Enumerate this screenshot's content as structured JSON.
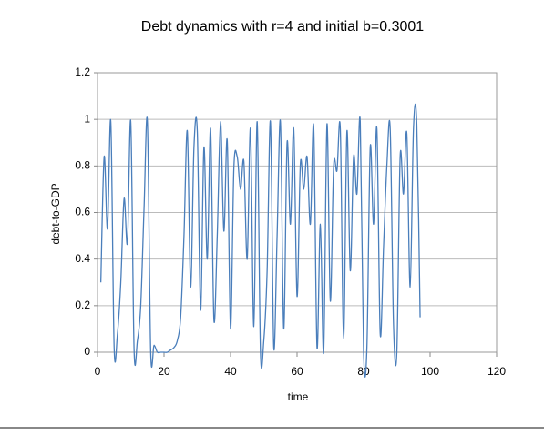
{
  "chart_data": {
    "type": "line",
    "title": "Debt dynamics with r=4 and initial b=0.3001",
    "xlabel": "time",
    "ylabel": "debt-to-GDP",
    "x": [
      1,
      2,
      3,
      4,
      5,
      6,
      7,
      8,
      9,
      10,
      11,
      12,
      13,
      14,
      15,
      16,
      17,
      18,
      19,
      20,
      21,
      22,
      23,
      24,
      25,
      26,
      27,
      28,
      29,
      30,
      31,
      32,
      33,
      34,
      35,
      36,
      37,
      38,
      39,
      40,
      41,
      42,
      43,
      44,
      45,
      46,
      47,
      48,
      49,
      50,
      51,
      52,
      53,
      54,
      55,
      56,
      57,
      58,
      59,
      60,
      61,
      62,
      63,
      64,
      65,
      66,
      67,
      68,
      69,
      70,
      71,
      72,
      73,
      74,
      75,
      76,
      77,
      78,
      79,
      80,
      81,
      82,
      83,
      84,
      85,
      86,
      87,
      88,
      89,
      90,
      91,
      92,
      93,
      94,
      95,
      96,
      97
    ],
    "values": [
      0.3,
      0.84,
      0.53,
      0.99,
      0.02,
      0.08,
      0.3,
      0.66,
      0.47,
      0.99,
      0.01,
      0.05,
      0.2,
      0.62,
      0.99,
      0.0,
      0.03,
      0.0,
      0.0,
      0.0,
      0.0,
      0.01,
      0.02,
      0.05,
      0.15,
      0.5,
      0.95,
      0.28,
      0.88,
      0.95,
      0.18,
      0.88,
      0.4,
      0.96,
      0.14,
      0.5,
      0.99,
      0.52,
      0.91,
      0.1,
      0.79,
      0.84,
      0.7,
      0.82,
      0.4,
      0.96,
      0.11,
      0.99,
      0.0,
      0.05,
      0.35,
      0.99,
      0.02,
      0.5,
      0.99,
      0.1,
      0.9,
      0.55,
      0.96,
      0.24,
      0.81,
      0.7,
      0.84,
      0.55,
      0.97,
      0.02,
      0.55,
      0.0,
      0.98,
      0.22,
      0.8,
      0.78,
      0.96,
      0.06,
      0.95,
      0.35,
      0.84,
      0.68,
      0.99,
      0.0,
      0.02,
      0.88,
      0.55,
      0.96,
      0.08,
      0.45,
      0.8,
      0.96,
      0.12,
      0.0,
      0.84,
      0.68,
      0.94,
      0.28,
      0.96,
      0.98,
      0.15
    ],
    "color": "#4a7ebb",
    "xlim": [
      0,
      120
    ],
    "xticks": [
      0,
      20,
      40,
      60,
      80,
      100,
      120
    ],
    "ylim": [
      0,
      1.2
    ],
    "yticks": [
      0,
      0.2,
      0.4,
      0.6,
      0.8,
      1,
      1.2
    ],
    "grid": true
  }
}
